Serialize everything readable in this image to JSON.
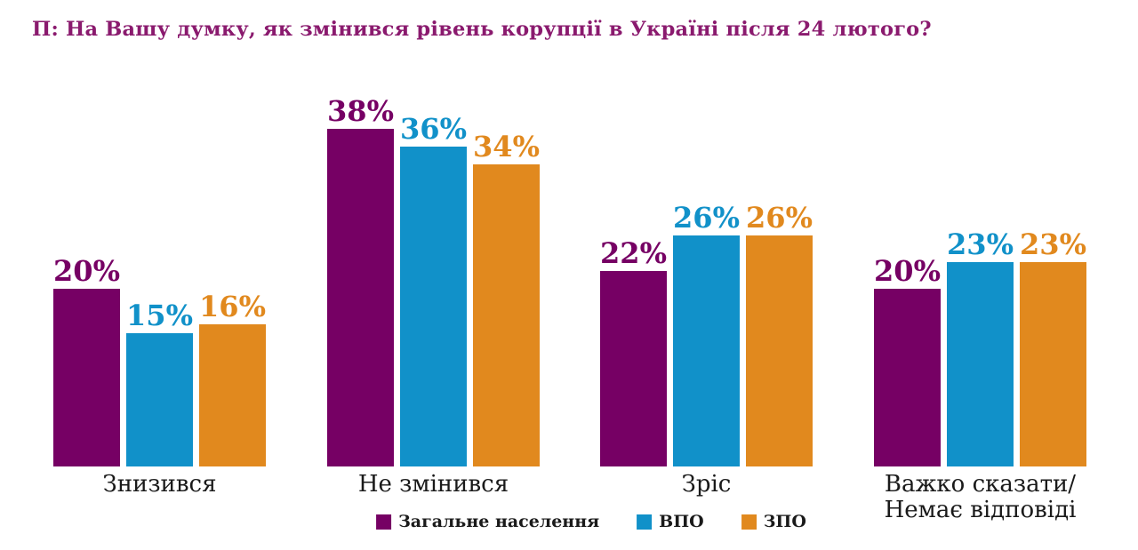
{
  "title": "П: На Вашу думку, як змінився рівень корупції в Україні після 24 лютого?",
  "title_color": "#8A1A6E",
  "chart_data": {
    "type": "bar",
    "title": "П: На Вашу думку, як змінився рівень корупції в Україні після 24 лютого?",
    "categories": [
      "Знизився",
      "Не змінився",
      "Зріс",
      "Важко сказати/\nНемає відповіді"
    ],
    "series": [
      {
        "name": "Загальне населення",
        "color": "#760064",
        "values": [
          20,
          38,
          22,
          20
        ]
      },
      {
        "name": "ВПО",
        "color": "#1191C9",
        "values": [
          15,
          36,
          26,
          23
        ]
      },
      {
        "name": "ЗПО",
        "color": "#E1891E",
        "values": [
          16,
          34,
          26,
          23
        ]
      }
    ],
    "value_suffix": "%",
    "ylim": [
      0,
      40
    ],
    "grid": false,
    "data_labels": true,
    "legend_position": "bottom"
  }
}
